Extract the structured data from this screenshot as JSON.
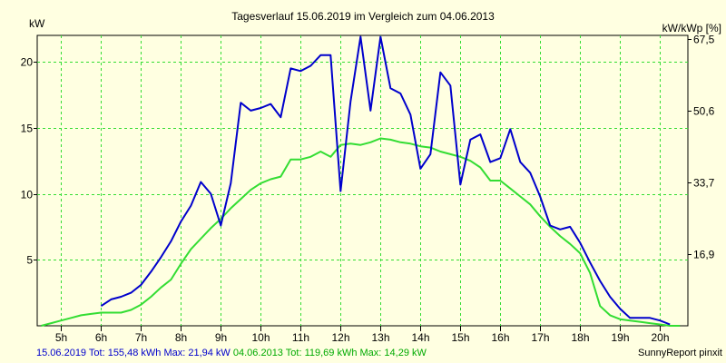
{
  "chart_data": {
    "type": "line",
    "title": "Tagesverlauf 15.06.2019 im Vergleich zum 04.06.2013",
    "ylabel_left": "kW",
    "ylabel_right": "kW/kWp [%]",
    "xlim": [
      4.4,
      20.7
    ],
    "ylim": [
      0,
      22
    ],
    "grid": true,
    "x_ticks": [
      5,
      6,
      7,
      8,
      9,
      10,
      11,
      12,
      13,
      14,
      15,
      16,
      17,
      18,
      19,
      20
    ],
    "x_tick_labels": [
      "5h",
      "6h",
      "7h",
      "8h",
      "9h",
      "10h",
      "11h",
      "12h",
      "13h",
      "14h",
      "15h",
      "16h",
      "17h",
      "18h",
      "19h",
      "20h"
    ],
    "y_ticks": [
      5,
      10,
      15,
      20
    ],
    "y_tick_labels": [
      "5",
      "10",
      "15",
      "20"
    ],
    "y2_ticks": [
      5.44,
      10.85,
      16.3,
      21.75
    ],
    "y2_tick_labels": [
      "16,9",
      "33,7",
      "50,6",
      "67,5"
    ],
    "series": [
      {
        "color": "#0000cc",
        "x": [
          6.0,
          6.25,
          6.5,
          6.75,
          7.0,
          7.25,
          7.5,
          7.75,
          8.0,
          8.25,
          8.5,
          8.75,
          9.0,
          9.25,
          9.5,
          9.75,
          10.0,
          10.25,
          10.5,
          10.75,
          11.0,
          11.25,
          11.5,
          11.75,
          12.0,
          12.25,
          12.5,
          12.75,
          13.0,
          13.25,
          13.5,
          13.75,
          14.0,
          14.25,
          14.5,
          14.75,
          15.0,
          15.25,
          15.5,
          15.75,
          16.0,
          16.25,
          16.5,
          16.75,
          17.0,
          17.25,
          17.5,
          17.75,
          18.0,
          18.25,
          18.5,
          18.75,
          19.0,
          19.25,
          19.5,
          19.75,
          20.0,
          20.25
        ],
        "y": [
          1.5,
          2.0,
          2.2,
          2.5,
          3.1,
          4.1,
          5.2,
          6.4,
          7.9,
          9.1,
          10.9,
          10.0,
          7.6,
          10.8,
          16.9,
          16.3,
          16.5,
          16.8,
          15.8,
          19.5,
          19.3,
          19.7,
          20.5,
          20.5,
          10.2,
          17.0,
          21.9,
          16.3,
          21.9,
          18.0,
          17.6,
          16.0,
          11.9,
          13.0,
          19.2,
          18.2,
          10.7,
          14.1,
          14.5,
          12.4,
          12.7,
          14.9,
          12.4,
          11.6,
          9.8,
          7.6,
          7.3,
          7.5,
          6.3,
          4.8,
          3.4,
          2.2,
          1.3,
          0.6,
          0.6,
          0.6,
          0.4,
          0.1
        ]
      },
      {
        "color": "#33dd33",
        "x": [
          4.5,
          4.75,
          5.0,
          5.25,
          5.5,
          5.75,
          6.0,
          6.25,
          6.5,
          6.75,
          7.0,
          7.25,
          7.5,
          7.75,
          8.0,
          8.25,
          8.5,
          8.75,
          9.0,
          9.25,
          9.5,
          9.75,
          10.0,
          10.25,
          10.5,
          10.75,
          11.0,
          11.25,
          11.5,
          11.75,
          12.0,
          12.25,
          12.5,
          12.75,
          13.0,
          13.25,
          13.5,
          13.75,
          14.0,
          14.25,
          14.5,
          14.75,
          15.0,
          15.25,
          15.5,
          15.75,
          16.0,
          16.25,
          16.5,
          16.75,
          17.0,
          17.25,
          17.5,
          17.75,
          18.0,
          18.25,
          18.5,
          18.75,
          19.0,
          19.25,
          19.5,
          19.75,
          20.0,
          20.25,
          20.5
        ],
        "y": [
          0.0,
          0.2,
          0.4,
          0.6,
          0.8,
          0.9,
          1.0,
          1.0,
          1.0,
          1.2,
          1.6,
          2.2,
          2.9,
          3.5,
          4.7,
          5.8,
          6.6,
          7.4,
          8.1,
          8.9,
          9.6,
          10.3,
          10.8,
          11.1,
          11.3,
          12.6,
          12.6,
          12.8,
          13.2,
          12.8,
          13.7,
          13.8,
          13.7,
          13.9,
          14.2,
          14.1,
          13.9,
          13.8,
          13.6,
          13.5,
          13.2,
          13.0,
          12.8,
          12.5,
          12.0,
          11.0,
          11.0,
          10.4,
          9.8,
          9.2,
          8.3,
          7.5,
          6.8,
          6.2,
          5.5,
          4.0,
          1.5,
          0.8,
          0.5,
          0.4,
          0.3,
          0.2,
          0.1,
          0.0,
          0.0
        ]
      }
    ]
  },
  "footer": {
    "series1_text": "15.06.2019 Tot: 155,48 kWh Max: 21,94 kW",
    "series2_text": "04.06.2013 Tot: 119,69 kWh Max: 14,29 kW",
    "brand": "SunnyReport pinxit"
  }
}
